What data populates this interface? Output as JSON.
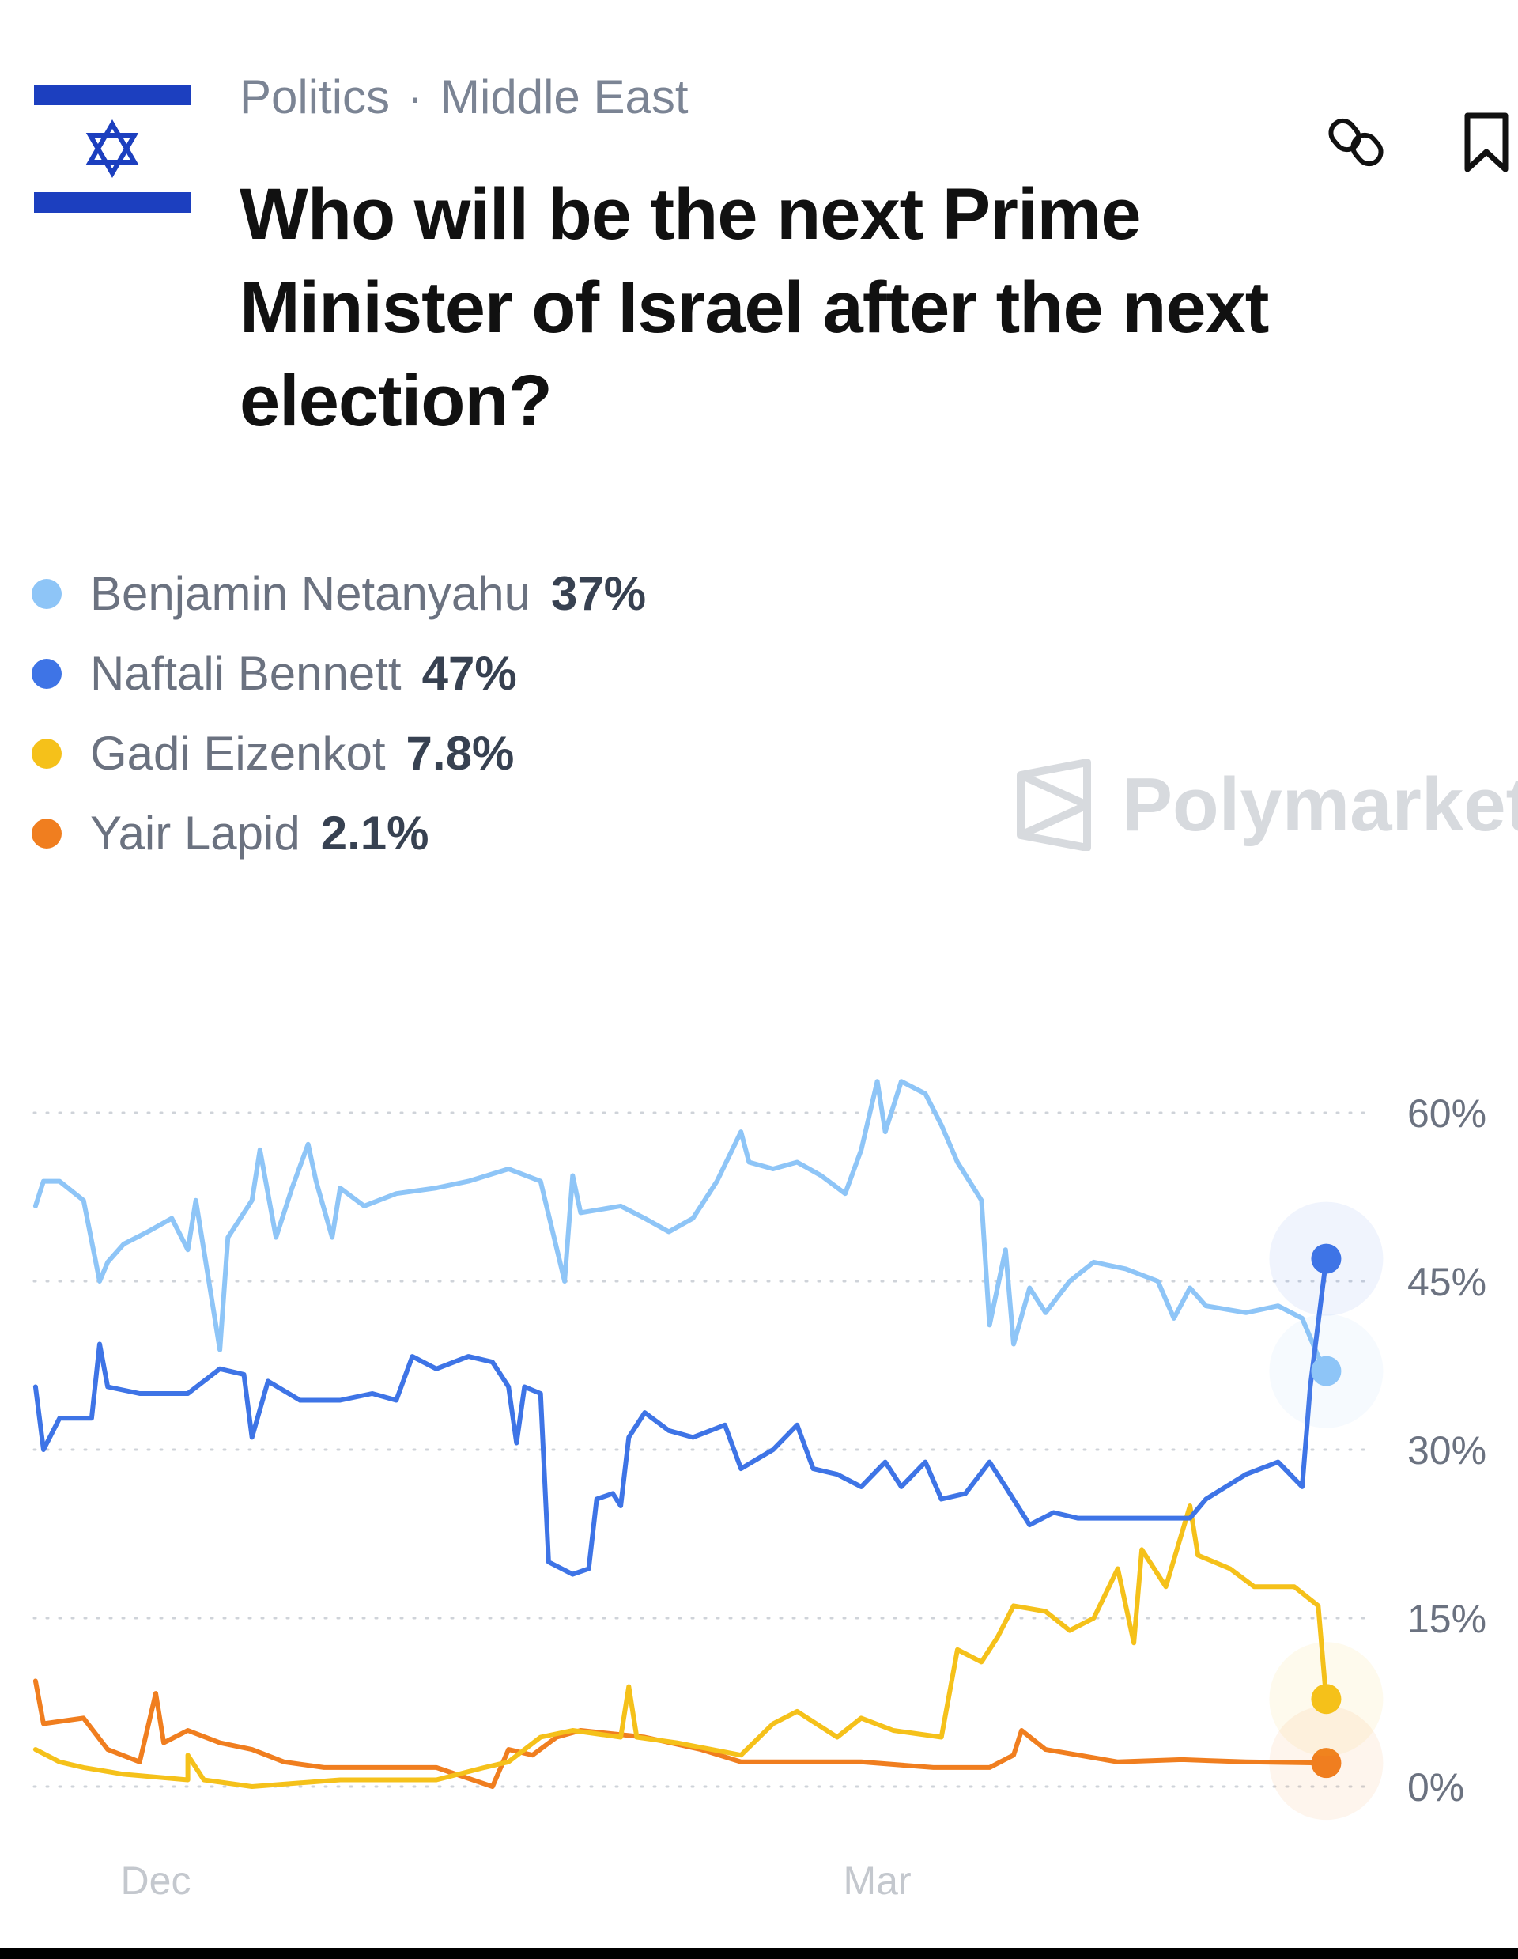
{
  "header": {
    "category": "Politics",
    "subcategory": "Middle East",
    "separator": "·",
    "title": "Who will be the next Prime Minister of Israel after the next election?",
    "icons": [
      "israel-flag",
      "link-icon",
      "bookmark-icon"
    ]
  },
  "legend": [
    {
      "name": "Benjamin Netanyahu",
      "value": "37%",
      "color": "#8ec5f7"
    },
    {
      "name": "Naftali Bennett",
      "value": "47%",
      "color": "#3e74e6"
    },
    {
      "name": "Gadi Eizenkot",
      "value": "7.8%",
      "color": "#f5c11a"
    },
    {
      "name": "Yair Lapid",
      "value": "2.1%",
      "color": "#f07e1f"
    }
  ],
  "watermark": "Polymarket",
  "chart_data": {
    "type": "line",
    "xlabel": "",
    "ylabel": "",
    "x_ticks": [
      "Dec",
      "Mar"
    ],
    "y_ticks": [
      "60%",
      "45%",
      "30%",
      "15%",
      "0%"
    ],
    "ylim": [
      0,
      60
    ],
    "grid": "dotted horizontal",
    "y_axis_side": "right",
    "series": [
      {
        "name": "Benjamin Netanyahu",
        "color": "#8ec5f7",
        "points": [
          [
            "Nov 16",
            51.7
          ],
          [
            "Nov 17",
            53.9
          ],
          [
            "Nov 19",
            53.9
          ],
          [
            "Nov 22",
            52.2
          ],
          [
            "Nov 24",
            45
          ],
          [
            "Nov 25",
            46.7
          ],
          [
            "Nov 27",
            48.3
          ],
          [
            "Nov 30",
            49.4
          ],
          [
            "Dec 3",
            50.6
          ],
          [
            "Dec 5",
            47.8
          ],
          [
            "Dec 6",
            52.2
          ],
          [
            "Dec 9",
            38.9
          ],
          [
            "Dec 10",
            48.9
          ],
          [
            "Dec 13",
            52.2
          ],
          [
            "Dec 14",
            56.7
          ],
          [
            "Dec 16",
            48.9
          ],
          [
            "Dec 18",
            53.3
          ],
          [
            "Dec 20",
            57.2
          ],
          [
            "Dec 21",
            53.9
          ],
          [
            "Dec 23",
            48.9
          ],
          [
            "Dec 24",
            53.3
          ],
          [
            "Dec 27",
            51.7
          ],
          [
            "Dec 31",
            52.8
          ],
          [
            "Jan 5",
            53.3
          ],
          [
            "Jan 9",
            53.9
          ],
          [
            "Jan 14",
            55
          ],
          [
            "Jan 18",
            53.9
          ],
          [
            "Jan 21",
            45
          ],
          [
            "Jan 22",
            54.4
          ],
          [
            "Jan 23",
            51.1
          ],
          [
            "Jan 28",
            51.7
          ],
          [
            "Jan 31",
            50.6
          ],
          [
            "Feb 3",
            49.4
          ],
          [
            "Feb 6",
            50.6
          ],
          [
            "Feb 9",
            53.9
          ],
          [
            "Feb 12",
            58.3
          ],
          [
            "Feb 13",
            55.6
          ],
          [
            "Feb 16",
            55
          ],
          [
            "Feb 19",
            55.6
          ],
          [
            "Feb 22",
            54.4
          ],
          [
            "Feb 25",
            52.8
          ],
          [
            "Feb 27",
            56.7
          ],
          [
            "Mar 1",
            62.8
          ],
          [
            "Mar 2",
            58.3
          ],
          [
            "Mar 4",
            62.8
          ],
          [
            "Mar 7",
            61.7
          ],
          [
            "Mar 9",
            58.9
          ],
          [
            "Mar 11",
            55.6
          ],
          [
            "Mar 14",
            52.2
          ],
          [
            "Mar 15",
            41.1
          ],
          [
            "Mar 17",
            47.8
          ],
          [
            "Mar 18",
            39.4
          ],
          [
            "Mar 20",
            44.4
          ],
          [
            "Mar 22",
            42.2
          ],
          [
            "Mar 25",
            45
          ],
          [
            "Mar 28",
            46.7
          ],
          [
            "Apr 1",
            46.1
          ],
          [
            "Apr 5",
            45
          ],
          [
            "Apr 7",
            41.7
          ],
          [
            "Apr 9",
            44.4
          ],
          [
            "Apr 11",
            42.8
          ],
          [
            "Apr 16",
            42.2
          ],
          [
            "Apr 20",
            42.8
          ],
          [
            "Apr 23",
            41.7
          ],
          [
            "Apr 25",
            38.3
          ],
          [
            "Apr 26",
            37
          ]
        ]
      },
      {
        "name": "Naftali Bennett",
        "color": "#3e74e6",
        "points": [
          [
            "Nov 16",
            35.6
          ],
          [
            "Nov 17",
            30
          ],
          [
            "Nov 19",
            32.8
          ],
          [
            "Nov 23",
            32.8
          ],
          [
            "Nov 24",
            39.4
          ],
          [
            "Nov 25",
            35.6
          ],
          [
            "Nov 29",
            35
          ],
          [
            "Dec 5",
            35
          ],
          [
            "Dec 9",
            37.2
          ],
          [
            "Dec 12",
            36.7
          ],
          [
            "Dec 13",
            31.1
          ],
          [
            "Dec 15",
            36.1
          ],
          [
            "Dec 19",
            34.4
          ],
          [
            "Dec 24",
            34.4
          ],
          [
            "Dec 28",
            35
          ],
          [
            "Dec 31",
            34.4
          ],
          [
            "Jan 2",
            38.3
          ],
          [
            "Jan 5",
            37.2
          ],
          [
            "Jan 9",
            38.3
          ],
          [
            "Jan 12",
            37.8
          ],
          [
            "Jan 14",
            35.6
          ],
          [
            "Jan 15",
            30.6
          ],
          [
            "Jan 16",
            35.6
          ],
          [
            "Jan 18",
            35
          ],
          [
            "Jan 19",
            20
          ],
          [
            "Jan 22",
            18.9
          ],
          [
            "Jan 24",
            19.4
          ],
          [
            "Jan 25",
            25.6
          ],
          [
            "Jan 27",
            26.1
          ],
          [
            "Jan 28",
            25
          ],
          [
            "Jan 29",
            31.1
          ],
          [
            "Jan 31",
            33.3
          ],
          [
            "Feb 3",
            31.7
          ],
          [
            "Feb 6",
            31.1
          ],
          [
            "Feb 10",
            32.2
          ],
          [
            "Feb 12",
            28.3
          ],
          [
            "Feb 16",
            30
          ],
          [
            "Feb 19",
            32.2
          ],
          [
            "Feb 21",
            28.3
          ],
          [
            "Feb 24",
            27.8
          ],
          [
            "Feb 27",
            26.7
          ],
          [
            "Mar 2",
            28.9
          ],
          [
            "Mar 4",
            26.7
          ],
          [
            "Mar 7",
            28.9
          ],
          [
            "Mar 9",
            25.6
          ],
          [
            "Mar 12",
            26.1
          ],
          [
            "Mar 15",
            28.9
          ],
          [
            "Mar 17",
            26.7
          ],
          [
            "Mar 20",
            23.3
          ],
          [
            "Mar 23",
            24.4
          ],
          [
            "Mar 26",
            23.9
          ],
          [
            "Apr 9",
            23.9
          ],
          [
            "Apr 11",
            25.6
          ],
          [
            "Apr 16",
            27.8
          ],
          [
            "Apr 20",
            28.9
          ],
          [
            "Apr 23",
            26.7
          ],
          [
            "Apr 24",
            35.6
          ],
          [
            "Apr 26",
            47
          ]
        ]
      },
      {
        "name": "Gadi Eizenkot",
        "color": "#f5c11a",
        "points": [
          [
            "Nov 16",
            3.3
          ],
          [
            "Nov 19",
            2.2
          ],
          [
            "Nov 22",
            1.7
          ],
          [
            "Nov 27",
            1.1
          ],
          [
            "Dec 5",
            0.6
          ],
          [
            "Dec 5",
            2.8
          ],
          [
            "Dec 7",
            0.6
          ],
          [
            "Dec 13",
            0
          ],
          [
            "Dec 24",
            0.6
          ],
          [
            "Dec 28",
            0.6
          ],
          [
            "Jan 5",
            0.6
          ],
          [
            "Jan 11",
            1.7
          ],
          [
            "Jan 14",
            2.2
          ],
          [
            "Jan 18",
            4.4
          ],
          [
            "Jan 22",
            5
          ],
          [
            "Jan 28",
            4.4
          ],
          [
            "Jan 29",
            8.9
          ],
          [
            "Jan 30",
            4.4
          ],
          [
            "Feb 4",
            3.9
          ],
          [
            "Feb 12",
            2.8
          ],
          [
            "Feb 16",
            5.6
          ],
          [
            "Feb 19",
            6.7
          ],
          [
            "Feb 24",
            4.4
          ],
          [
            "Feb 27",
            6.1
          ],
          [
            "Mar 3",
            5
          ],
          [
            "Mar 9",
            4.4
          ],
          [
            "Mar 11",
            12.2
          ],
          [
            "Mar 14",
            11.1
          ],
          [
            "Mar 16",
            13.3
          ],
          [
            "Mar 18",
            16.1
          ],
          [
            "Mar 22",
            15.6
          ],
          [
            "Mar 25",
            13.9
          ],
          [
            "Mar 28",
            15
          ],
          [
            "Mar 31",
            19.4
          ],
          [
            "Apr 2",
            12.8
          ],
          [
            "Apr 3",
            21.1
          ],
          [
            "Apr 6",
            17.8
          ],
          [
            "Apr 9",
            25
          ],
          [
            "Apr 10",
            20.6
          ],
          [
            "Apr 14",
            19.4
          ],
          [
            "Apr 17",
            17.8
          ],
          [
            "Apr 22",
            17.8
          ],
          [
            "Apr 25",
            16.1
          ],
          [
            "Apr 26",
            7.8
          ]
        ]
      },
      {
        "name": "Yair Lapid",
        "color": "#f07e1f",
        "points": [
          [
            "Nov 16",
            9.4
          ],
          [
            "Nov 17",
            5.6
          ],
          [
            "Nov 22",
            6.1
          ],
          [
            "Nov 25",
            3.3
          ],
          [
            "Nov 29",
            2.2
          ],
          [
            "Dec 1",
            8.3
          ],
          [
            "Dec 2",
            3.9
          ],
          [
            "Dec 5",
            5
          ],
          [
            "Dec 9",
            3.9
          ],
          [
            "Dec 13",
            3.3
          ],
          [
            "Dec 17",
            2.2
          ],
          [
            "Dec 22",
            1.7
          ],
          [
            "Dec 31",
            1.7
          ],
          [
            "Jan 5",
            1.7
          ],
          [
            "Jan 12",
            0
          ],
          [
            "Jan 14",
            3.3
          ],
          [
            "Jan 17",
            2.8
          ],
          [
            "Jan 20",
            4.4
          ],
          [
            "Jan 23",
            5
          ],
          [
            "Jan 31",
            4.4
          ],
          [
            "Feb 7",
            3.3
          ],
          [
            "Feb 12",
            2.2
          ],
          [
            "Feb 18",
            2.2
          ],
          [
            "Feb 27",
            2.2
          ],
          [
            "Mar 8",
            1.7
          ],
          [
            "Mar 15",
            1.7
          ],
          [
            "Mar 18",
            2.8
          ],
          [
            "Mar 19",
            5
          ],
          [
            "Mar 22",
            3.3
          ],
          [
            "Mar 31",
            2.2
          ],
          [
            "Apr 8",
            2.4
          ],
          [
            "Apr 16",
            2.2
          ],
          [
            "Apr 26",
            2.1
          ]
        ]
      }
    ]
  }
}
